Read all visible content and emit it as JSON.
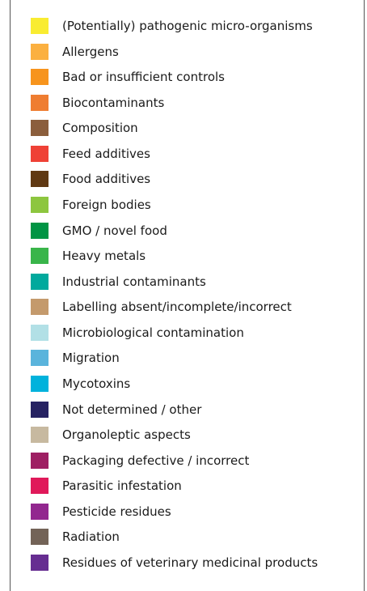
{
  "legend": {
    "items": [
      {
        "label": "(Potentially) pathogenic micro-organisms",
        "color": "#f9ec31"
      },
      {
        "label": "Allergens",
        "color": "#fbb040"
      },
      {
        "label": "Bad or insufficient controls",
        "color": "#f7941d"
      },
      {
        "label": "Biocontaminants",
        "color": "#ef7d31"
      },
      {
        "label": "Composition",
        "color": "#8b5e3c"
      },
      {
        "label": "Feed additives",
        "color": "#ef4136"
      },
      {
        "label": "Food additives",
        "color": "#603913"
      },
      {
        "label": "Foreign bodies",
        "color": "#8dc63f"
      },
      {
        "label": "GMO / novel food",
        "color": "#009444"
      },
      {
        "label": "Heavy metals",
        "color": "#39b54a"
      },
      {
        "label": "Industrial contaminants",
        "color": "#00a99d"
      },
      {
        "label": "Labelling absent/incomplete/incorrect",
        "color": "#c49a6c"
      },
      {
        "label": "Microbiological contamination",
        "color": "#b2e0e6"
      },
      {
        "label": "Migration",
        "color": "#5ab4dc"
      },
      {
        "label": "Mycotoxins",
        "color": "#00b2dc"
      },
      {
        "label": "Not determined / other",
        "color": "#262262"
      },
      {
        "label": "Organoleptic aspects",
        "color": "#c7b9a0"
      },
      {
        "label": "Packaging defective / incorrect",
        "color": "#9e1f63"
      },
      {
        "label": "Parasitic infestation",
        "color": "#e0195a"
      },
      {
        "label": "Pesticide residues",
        "color": "#92278f"
      },
      {
        "label": "Radiation",
        "color": "#736357"
      },
      {
        "label": "Residues of veterinary medicinal products",
        "color": "#662d91"
      }
    ]
  }
}
